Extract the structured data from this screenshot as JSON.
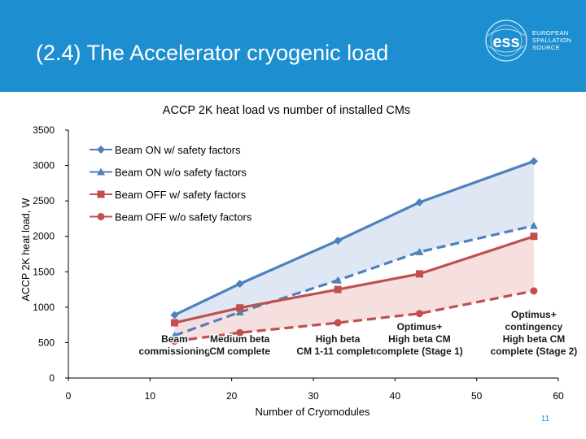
{
  "slide": {
    "title": "(2.4) The Accelerator cryogenic load",
    "page_number": "11",
    "logo": {
      "name": "ess",
      "lines": [
        "EUROPEAN",
        "SPALLATION",
        "SOURCE"
      ]
    },
    "colors": {
      "header": "#1d8fd0",
      "series_blue": "#4e81bd",
      "series_red": "#c0504d",
      "fill_blue": "#dbe4f3",
      "fill_red": "#f5dcdc"
    }
  },
  "chart_data": {
    "type": "line",
    "title": "ACCP 2K heat load vs number of installed CMs",
    "xlabel": "Number of Cryomodules",
    "ylabel": "ACCP 2K heat load, W",
    "xlim": [
      0,
      60
    ],
    "ylim": [
      0,
      3500
    ],
    "xticks": [
      0,
      10,
      20,
      30,
      40,
      50,
      60
    ],
    "yticks": [
      0,
      500,
      1000,
      1500,
      2000,
      2500,
      3000,
      3500
    ],
    "x": [
      13,
      21,
      33,
      43,
      57
    ],
    "series": [
      {
        "name": "Beam ON w/ safety factors",
        "marker": "diamond",
        "color": "#4e81bd",
        "dashed": false,
        "values": [
          890,
          1330,
          1940,
          2480,
          3060
        ]
      },
      {
        "name": "Beam ON w/o safety factors",
        "marker": "triangle",
        "color": "#4e81bd",
        "dashed": true,
        "values": [
          600,
          930,
          1380,
          1780,
          2150
        ]
      },
      {
        "name": "Beam OFF w/ safety factors",
        "marker": "square",
        "color": "#c0504d",
        "dashed": false,
        "values": [
          780,
          990,
          1250,
          1470,
          2000
        ]
      },
      {
        "name": "Beam OFF w/o safety factors",
        "marker": "circle",
        "color": "#c0504d",
        "dashed": true,
        "values": [
          520,
          640,
          780,
          910,
          1230
        ]
      }
    ],
    "shaded_bands": [
      {
        "upper": "Beam ON w/ safety factors",
        "lower": "Beam ON w/o safety factors"
      },
      {
        "upper": "Beam OFF w/ safety factors",
        "lower": "Beam OFF w/o safety factors"
      }
    ],
    "stage_annotations": [
      {
        "x": 13,
        "lines": [
          "Beam",
          "commissioning"
        ]
      },
      {
        "x": 21,
        "lines": [
          "Medium beta",
          "CM complete"
        ]
      },
      {
        "x": 33,
        "lines": [
          "High beta",
          "CM 1-11 complete"
        ]
      },
      {
        "x": 43,
        "lines": [
          "Optimus+",
          "High beta CM",
          "complete (Stage 1)"
        ]
      },
      {
        "x": 57,
        "lines": [
          "Optimus+",
          "contingency",
          "High beta CM",
          "complete (Stage 2)"
        ]
      }
    ],
    "legend_position": "top-left"
  }
}
